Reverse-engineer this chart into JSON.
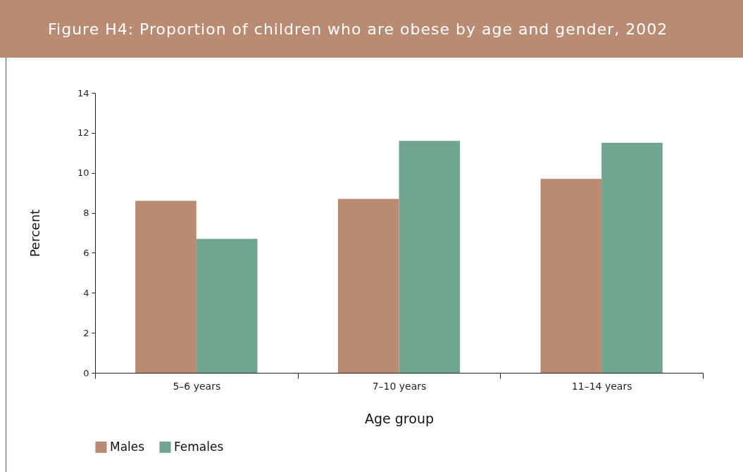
{
  "chart_data": {
    "type": "bar",
    "title": "Figure H4: Proportion of children who are obese by age and gender, 2002",
    "xlabel": "Age group",
    "ylabel": "Percent",
    "categories": [
      "5–6 years",
      "7–10 years",
      "11–14 years"
    ],
    "series": [
      {
        "name": "Males",
        "color": "#b88b72",
        "values": [
          8.6,
          8.7,
          9.7
        ]
      },
      {
        "name": "Females",
        "color": "#70a590",
        "values": [
          6.7,
          11.6,
          11.5
        ]
      }
    ],
    "ylim": [
      0,
      14
    ],
    "yticks": [
      0,
      2,
      4,
      6,
      8,
      10,
      12,
      14
    ],
    "grid": false,
    "legend": "bottom"
  }
}
